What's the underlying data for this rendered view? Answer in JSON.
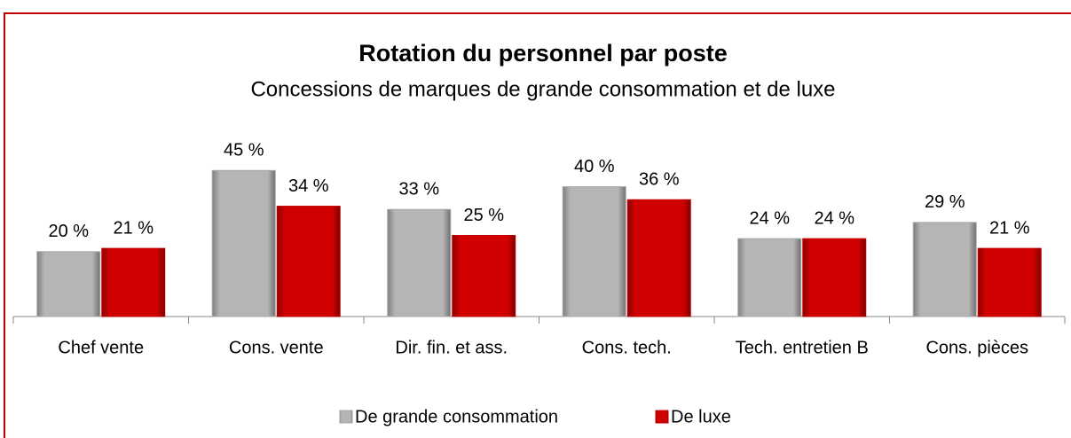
{
  "chart_data": {
    "type": "bar",
    "title": "Rotation du personnel par poste",
    "subtitle": "Concessions de marques de grande consommation et de luxe",
    "categories": [
      "Chef vente",
      "Cons. vente",
      "Dir. fin. et ass.",
      "Cons. tech.",
      "Tech. entretien B",
      "Cons. pièces"
    ],
    "series": [
      {
        "name": "De grande consommation",
        "color": "#a6a6a6",
        "values": [
          20,
          45,
          33,
          40,
          24,
          29
        ],
        "value_labels": [
          "20 %",
          "45 %",
          "33 %",
          "40 %",
          "24 %",
          "29 %"
        ]
      },
      {
        "name": "De luxe",
        "color": "#c00000",
        "values": [
          21,
          34,
          25,
          36,
          24,
          21
        ],
        "value_labels": [
          "21 %",
          "34 %",
          "25 %",
          "36 %",
          "24 %",
          "21 %"
        ]
      }
    ],
    "ylim": [
      0,
      50
    ],
    "legend": "bottom"
  }
}
